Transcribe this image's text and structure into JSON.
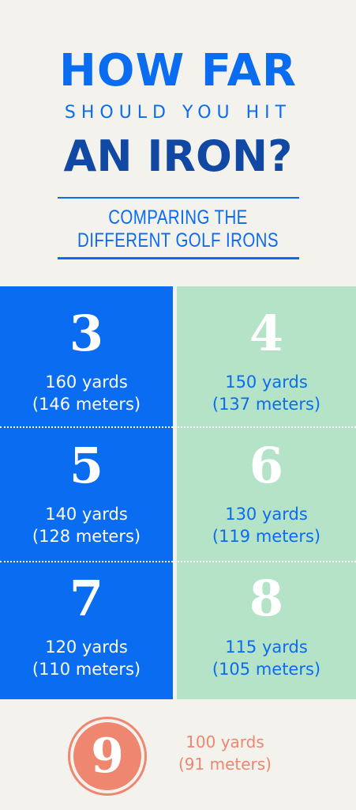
{
  "header": {
    "line1": "HOW FAR",
    "line2": "SHOULD YOU HIT",
    "line3": "AN IRON?",
    "subtitle_line1": "COMPARING THE",
    "subtitle_line2": "DIFFERENT GOLF IRONS"
  },
  "irons": [
    {
      "number": "3",
      "yards": "160 yards",
      "meters": "(146 meters)"
    },
    {
      "number": "4",
      "yards": "150 yards",
      "meters": "(137 meters)"
    },
    {
      "number": "5",
      "yards": "140 yards",
      "meters": "(128 meters)"
    },
    {
      "number": "6",
      "yards": "130 yards",
      "meters": "(119 meters)"
    },
    {
      "number": "7",
      "yards": "120 yards",
      "meters": "(110 meters)"
    },
    {
      "number": "8",
      "yards": "115 yards",
      "meters": "(105 meters)"
    }
  ],
  "nine": {
    "number": "9",
    "yards": "100 yards",
    "meters": "(91 meters)"
  },
  "colors": {
    "blue": "#0a6cf0",
    "navy": "#1048a4",
    "mint": "#b5e3c8",
    "coral": "#ef8670",
    "background": "#f3f2ed"
  }
}
